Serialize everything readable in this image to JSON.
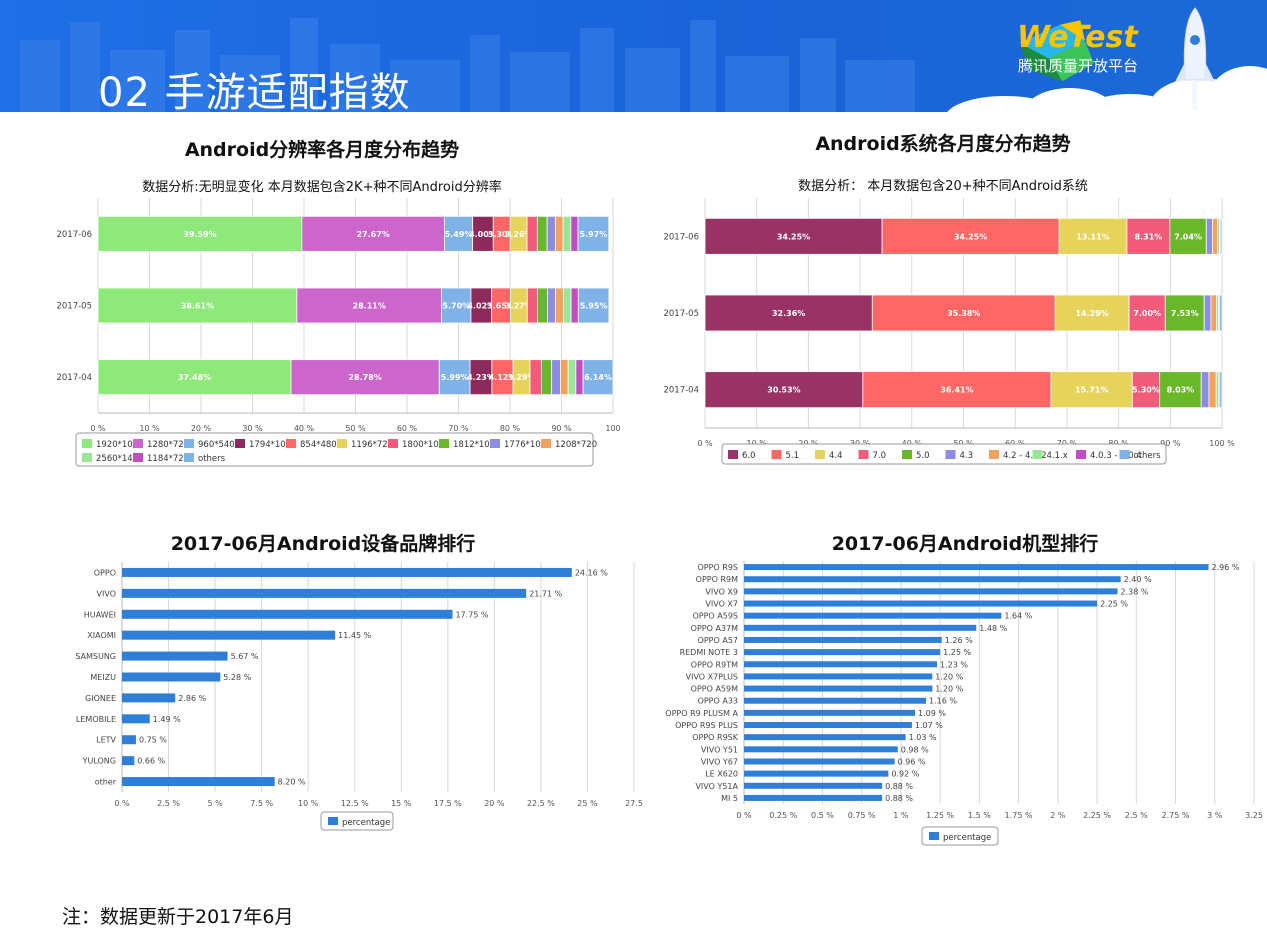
{
  "header": {
    "title": "02 手游适配指数",
    "logo_main": "WeTest",
    "logo_sub": "腾讯质量开放平台"
  },
  "footnote": "注：数据更新于2017年6月",
  "chart_data": [
    {
      "id": "resolution",
      "type": "bar",
      "orientation": "horizontal",
      "stacked": true,
      "title": "Android分辨率各月度分布趋势",
      "subtitle": "数据分析:无明显变化 本月数据包含2K+种不同Android分辨率",
      "categories": [
        "2017-06",
        "2017-05",
        "2017-04"
      ],
      "xlim": [
        0,
        100
      ],
      "x_ticks": [
        "0 %",
        "10 %",
        "20 %",
        "30 %",
        "40 %",
        "50 %",
        "60 %",
        "70 %",
        "80 %",
        "90 %",
        "100"
      ],
      "legend_placement": "bottom",
      "series": [
        {
          "name": "1920*1080",
          "color": "#8fe87a",
          "values": [
            39.59,
            38.61,
            37.48
          ],
          "labels": [
            "39.59%",
            "38.61%",
            "37.48%"
          ]
        },
        {
          "name": "1280*720",
          "color": "#cc66cc",
          "values": [
            27.67,
            28.11,
            28.78
          ],
          "labels": [
            "27.67%",
            "28.11%",
            "28.78%"
          ]
        },
        {
          "name": "960*540",
          "color": "#7fb3e8",
          "values": [
            5.49,
            5.7,
            5.99
          ],
          "labels": [
            "5.49%",
            "5.70%",
            "5.99%"
          ]
        },
        {
          "name": "1794*1080",
          "color": "#8c2a5c",
          "values": [
            4.0,
            4.02,
            4.23
          ],
          "labels": [
            "4.00%",
            "4.02%",
            "4.23%"
          ]
        },
        {
          "name": "854*480",
          "color": "#ff6666",
          "values": [
            3.3,
            3.65,
            4.12
          ],
          "labels": [
            "3.30%",
            "3.65%",
            "4.12%"
          ]
        },
        {
          "name": "1196*720",
          "color": "#e6d35c",
          "values": [
            3.26,
            3.27,
            3.29
          ],
          "labels": [
            "3.26%",
            "3.27%",
            "3.29%"
          ]
        },
        {
          "name": "1800*1080",
          "color": "#f25c7a",
          "values": [
            2.0,
            2.0,
            2.2
          ],
          "labels": [
            "",
            "",
            ""
          ]
        },
        {
          "name": "1812*1080",
          "color": "#6ab82a",
          "values": [
            1.9,
            1.9,
            2.0
          ],
          "labels": [
            "",
            "",
            ""
          ]
        },
        {
          "name": "1776*1080",
          "color": "#8c8ce6",
          "values": [
            1.6,
            1.6,
            1.7
          ],
          "labels": [
            "",
            "",
            ""
          ]
        },
        {
          "name": "1208*720",
          "color": "#f5a05c",
          "values": [
            1.5,
            1.5,
            1.5
          ],
          "labels": [
            "",
            "",
            ""
          ]
        },
        {
          "name": "2560*1440",
          "color": "#99e699",
          "values": [
            1.5,
            1.5,
            1.5
          ],
          "labels": [
            "",
            "",
            ""
          ]
        },
        {
          "name": "1184*720",
          "color": "#c04ec0",
          "values": [
            1.4,
            1.4,
            1.4
          ],
          "labels": [
            "",
            "",
            ""
          ]
        },
        {
          "name": "others",
          "color": "#7fb3e8",
          "values": [
            5.97,
            5.95,
            6.14
          ],
          "labels": [
            "5.97%",
            "5.95%",
            "6.14%"
          ]
        }
      ]
    },
    {
      "id": "system",
      "type": "bar",
      "orientation": "horizontal",
      "stacked": true,
      "title": "Android系统各月度分布趋势",
      "subtitle": "数据分析： 本月数据包含20+种不同Android系统",
      "categories": [
        "2017-06",
        "2017-05",
        "2017-04"
      ],
      "xlim": [
        0,
        100
      ],
      "x_ticks": [
        "0 %",
        "10 %",
        "20 %",
        "30 %",
        "40 %",
        "50 %",
        "60 %",
        "70 %",
        "80 %",
        "90 %",
        "100 %"
      ],
      "legend_placement": "bottom",
      "series": [
        {
          "name": "6.0",
          "color": "#993366",
          "values": [
            34.25,
            32.36,
            30.53
          ],
          "labels": [
            "34.25%",
            "32.36%",
            "30.53%"
          ]
        },
        {
          "name": "5.1",
          "color": "#ff6666",
          "values": [
            34.25,
            35.38,
            36.41
          ],
          "labels": [
            "34.25%",
            "35.38%",
            "36.41%"
          ]
        },
        {
          "name": "4.4",
          "color": "#e6d35c",
          "values": [
            13.11,
            14.29,
            15.71
          ],
          "labels": [
            "13.11%",
            "14.29%",
            "15.71%"
          ]
        },
        {
          "name": "7.0",
          "color": "#f25c7a",
          "values": [
            8.31,
            7.0,
            5.3
          ],
          "labels": [
            "8.31%",
            "7.00%",
            "5.30%"
          ]
        },
        {
          "name": "5.0",
          "color": "#6ab82a",
          "values": [
            7.04,
            7.53,
            8.03
          ],
          "labels": [
            "7.04%",
            "7.53%",
            "8.03%"
          ]
        },
        {
          "name": "4.3",
          "color": "#8c8ce6",
          "values": [
            1.2,
            1.3,
            1.5
          ],
          "labels": [
            "",
            "",
            ""
          ]
        },
        {
          "name": "4.2 - 4.2.2",
          "color": "#f5a05c",
          "values": [
            1.0,
            1.1,
            1.4
          ],
          "labels": [
            "",
            "",
            ""
          ]
        },
        {
          "name": "4.1.x",
          "color": "#99e699",
          "values": [
            0.4,
            0.4,
            0.5
          ],
          "labels": [
            "",
            "",
            ""
          ]
        },
        {
          "name": "4.0.3 - 4.0.4",
          "color": "#c04ec0",
          "values": [
            0.2,
            0.2,
            0.2
          ],
          "labels": [
            "",
            "",
            ""
          ]
        },
        {
          "name": "others",
          "color": "#7fb3e8",
          "values": [
            0.24,
            0.44,
            0.42
          ],
          "labels": [
            "",
            "",
            ""
          ]
        }
      ]
    },
    {
      "id": "brands",
      "type": "bar",
      "orientation": "horizontal",
      "title": "2017-06月Android设备品牌排行",
      "categories": [
        "OPPO",
        "VIVO",
        "HUAWEI",
        "XIAOMI",
        "SAMSUNG",
        "MEIZU",
        "GIONEE",
        "LEMOBILE",
        "LETV",
        "YULONG",
        "other"
      ],
      "values": [
        24.16,
        21.71,
        17.75,
        11.45,
        5.67,
        5.28,
        2.86,
        1.49,
        0.75,
        0.66,
        8.2
      ],
      "labels": [
        "24.16 %",
        "21.71 %",
        "17.75 %",
        "11.45 %",
        "5.67 %",
        "5.28 %",
        "2.86 %",
        "1.49 %",
        "0.75 %",
        "0.66 %",
        "8.20 %"
      ],
      "xlim": [
        0,
        27.5
      ],
      "x_ticks": [
        "0 %",
        "2.5 %",
        "5 %",
        "7.5 %",
        "10 %",
        "12.5 %",
        "15 %",
        "17.5 %",
        "20 %",
        "22.5 %",
        "25 %",
        "27.5"
      ],
      "color": "#2f7ed8",
      "legend": [
        "percentage"
      ],
      "legend_placement": "bottom"
    },
    {
      "id": "models",
      "type": "bar",
      "orientation": "horizontal",
      "title": "2017-06月Android机型排行",
      "categories": [
        "OPPO R9S",
        "OPPO R9M",
        "VIVO X9",
        "VIVO X7",
        "OPPO A59S",
        "OPPO A37M",
        "OPPO A57",
        "REDMI NOTE 3",
        "OPPO R9TM",
        "VIVO X7PLUS",
        "OPPO A59M",
        "OPPO A33",
        "OPPO R9 PLUSM A",
        "OPPO R9S PLUS",
        "OPPO R9SK",
        "VIVO Y51",
        "VIVO Y67",
        "LE X620",
        "VIVO Y51A",
        "MI 5"
      ],
      "values": [
        2.96,
        2.4,
        2.38,
        2.25,
        1.64,
        1.48,
        1.26,
        1.25,
        1.23,
        1.2,
        1.2,
        1.16,
        1.09,
        1.07,
        1.03,
        0.98,
        0.96,
        0.92,
        0.88,
        0.88
      ],
      "labels": [
        "2.96 %",
        "2.40 %",
        "2.38 %",
        "2.25 %",
        "1.64 %",
        "1.48 %",
        "1.26 %",
        "1.25 %",
        "1.23 %",
        "1.20 %",
        "1.20 %",
        "1.16 %",
        "1.09 %",
        "1.07 %",
        "1.03 %",
        "0.98 %",
        "0.96 %",
        "0.92 %",
        "0.88 %",
        "0.88 %"
      ],
      "xlim": [
        0,
        3.25
      ],
      "x_ticks": [
        "0 %",
        "0.25 %",
        "0.5 %",
        "0.75 %",
        "1 %",
        "1.25 %",
        "1.5 %",
        "1.75 %",
        "2 %",
        "2.25 %",
        "2.5 %",
        "2.75 %",
        "3 %",
        "3.25"
      ],
      "color": "#2f7ed8",
      "legend": [
        "percentage"
      ],
      "legend_placement": "bottom"
    }
  ]
}
